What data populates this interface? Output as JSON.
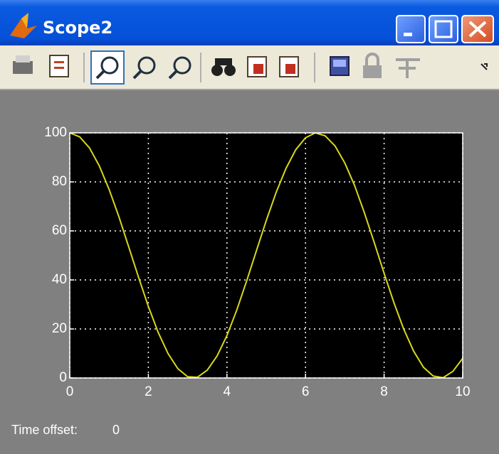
{
  "window": {
    "title": "Scope2"
  },
  "status": {
    "label": "Time offset:",
    "value": "0"
  },
  "chart_data": {
    "type": "line",
    "x": [
      0,
      0.25,
      0.5,
      0.75,
      1,
      1.25,
      1.5,
      1.75,
      2,
      2.25,
      2.5,
      2.75,
      3,
      3.25,
      3.5,
      3.75,
      4,
      4.25,
      4.5,
      4.75,
      5,
      5.25,
      5.5,
      5.75,
      6,
      6.25,
      6.5,
      6.75,
      7,
      7.25,
      7.5,
      7.75,
      8,
      8.25,
      8.5,
      8.75,
      9,
      9.25,
      9.5,
      9.75,
      10
    ],
    "series": [
      {
        "color": "#d8d81a",
        "values": [
          100,
          98.4,
          93.9,
          86.6,
          77.0,
          65.8,
          53.5,
          41.1,
          29.2,
          18.6,
          10.0,
          3.8,
          0.5,
          0.3,
          3.2,
          9.0,
          17.3,
          27.7,
          39.5,
          51.9,
          64.2,
          75.6,
          85.4,
          93.1,
          98.0,
          100.0,
          98.8,
          94.7,
          87.7,
          78.5,
          67.3,
          55.2,
          42.7,
          30.7,
          19.9,
          11.0,
          4.4,
          0.8,
          0.1,
          2.7,
          8.0
        ]
      }
    ],
    "xlim": [
      0,
      10
    ],
    "xticks": [
      0,
      2,
      4,
      6,
      8,
      10
    ],
    "ylim": [
      0,
      100
    ],
    "yticks": [
      0,
      20,
      40,
      60,
      80,
      100
    ],
    "grid": true
  }
}
